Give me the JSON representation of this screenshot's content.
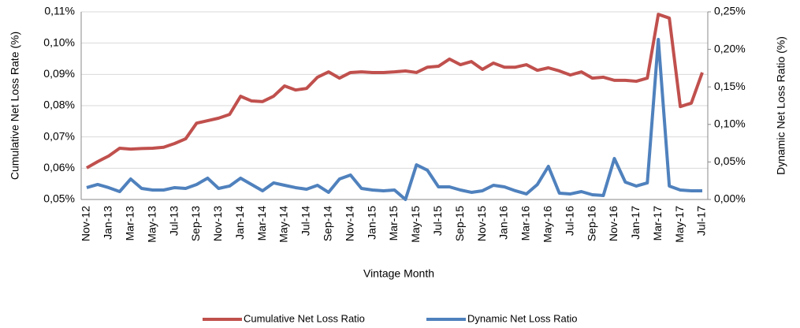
{
  "chart_data": {
    "type": "line",
    "x_label": "Vintage Month",
    "y_label": "Cumulative Net Loss Rate (%)",
    "y2_label": "Dynamic Net Loss Ratio (%)",
    "categories": [
      "Nov-12",
      null,
      "Jan-13",
      null,
      "Mar-13",
      null,
      "May-13",
      null,
      "Jul-13",
      null,
      "Sep-13",
      null,
      "Nov-13",
      null,
      "Jan-14",
      null,
      "Mar-14",
      null,
      "May-14",
      null,
      "Jul-14",
      null,
      "Sep-14",
      null,
      "Nov-14",
      null,
      "Jan-15",
      null,
      "Mar-15",
      null,
      "May-15",
      null,
      "Jul-15",
      null,
      "Sep-15",
      null,
      "Nov-15",
      null,
      "Jan-16",
      null,
      "Mar-16",
      null,
      "May-16",
      null,
      "Jul-16",
      null,
      "Sep-16",
      null,
      "Nov-16",
      null,
      "Jan-17",
      null,
      "Mar-17",
      null,
      "May-17",
      null,
      "Jul-17"
    ],
    "series": [
      {
        "name": "Cumulative Net Loss Ratio",
        "color": "#c0504d",
        "axis": "y",
        "values": [
          0.0601,
          0.0621,
          0.0639,
          0.0664,
          0.0661,
          0.0663,
          0.0664,
          0.0667,
          0.0679,
          0.0694,
          0.0744,
          0.0752,
          0.076,
          0.0772,
          0.083,
          0.0815,
          0.0813,
          0.083,
          0.0863,
          0.085,
          0.0855,
          0.0891,
          0.0908,
          0.0888,
          0.0906,
          0.0908,
          0.0906,
          0.0906,
          0.0908,
          0.0911,
          0.0906,
          0.0923,
          0.0926,
          0.0949,
          0.0931,
          0.0941,
          0.0916,
          0.0936,
          0.0923,
          0.0923,
          0.0931,
          0.0913,
          0.0921,
          0.0911,
          0.0898,
          0.0908,
          0.0888,
          0.0891,
          0.0881,
          0.0881,
          0.0878,
          0.0888,
          0.1092,
          0.108,
          0.0797,
          0.0808,
          0.0906
        ]
      },
      {
        "name": "Dynamic Net Loss Ratio",
        "color": "#4f81bd",
        "axis": "y2",
        "values": [
          0.0158,
          0.02,
          0.0158,
          0.0105,
          0.0273,
          0.0147,
          0.0126,
          0.0126,
          0.0158,
          0.0147,
          0.02,
          0.0284,
          0.0147,
          0.0179,
          0.0284,
          0.02,
          0.0116,
          0.0221,
          0.0189,
          0.0158,
          0.0137,
          0.0189,
          0.0095,
          0.0273,
          0.0326,
          0.0147,
          0.0126,
          0.0116,
          0.0126,
          0.0,
          0.0462,
          0.0389,
          0.0168,
          0.0168,
          0.0126,
          0.0095,
          0.0116,
          0.0189,
          0.0168,
          0.0116,
          0.0074,
          0.02,
          0.0441,
          0.0084,
          0.0074,
          0.0105,
          0.0063,
          0.0053,
          0.0546,
          0.0231,
          0.0179,
          0.0221,
          0.2132,
          0.0179,
          0.0126,
          0.0116,
          0.0116
        ]
      }
    ],
    "ylim": [
      0.05,
      0.11
    ],
    "yticks": [
      {
        "value": 0.05,
        "label": "0,05%"
      },
      {
        "value": 0.06,
        "label": "0,06%"
      },
      {
        "value": 0.07,
        "label": "0,07%"
      },
      {
        "value": 0.08,
        "label": "0,08%"
      },
      {
        "value": 0.09,
        "label": "0,09%"
      },
      {
        "value": 0.1,
        "label": "0,10%"
      },
      {
        "value": 0.11,
        "label": "0,11%"
      }
    ],
    "y2lim": [
      0,
      0.25
    ],
    "y2ticks": [
      {
        "value": 0,
        "label": "0,00%"
      },
      {
        "value": 0.05,
        "label": "0,05%"
      },
      {
        "value": 0.1,
        "label": "0,10%"
      },
      {
        "value": 0.15,
        "label": "0,15%"
      },
      {
        "value": 0.2,
        "label": "0,20%"
      },
      {
        "value": 0.25,
        "label": "0,25%"
      }
    ],
    "grid": true,
    "legend": "bottom"
  }
}
